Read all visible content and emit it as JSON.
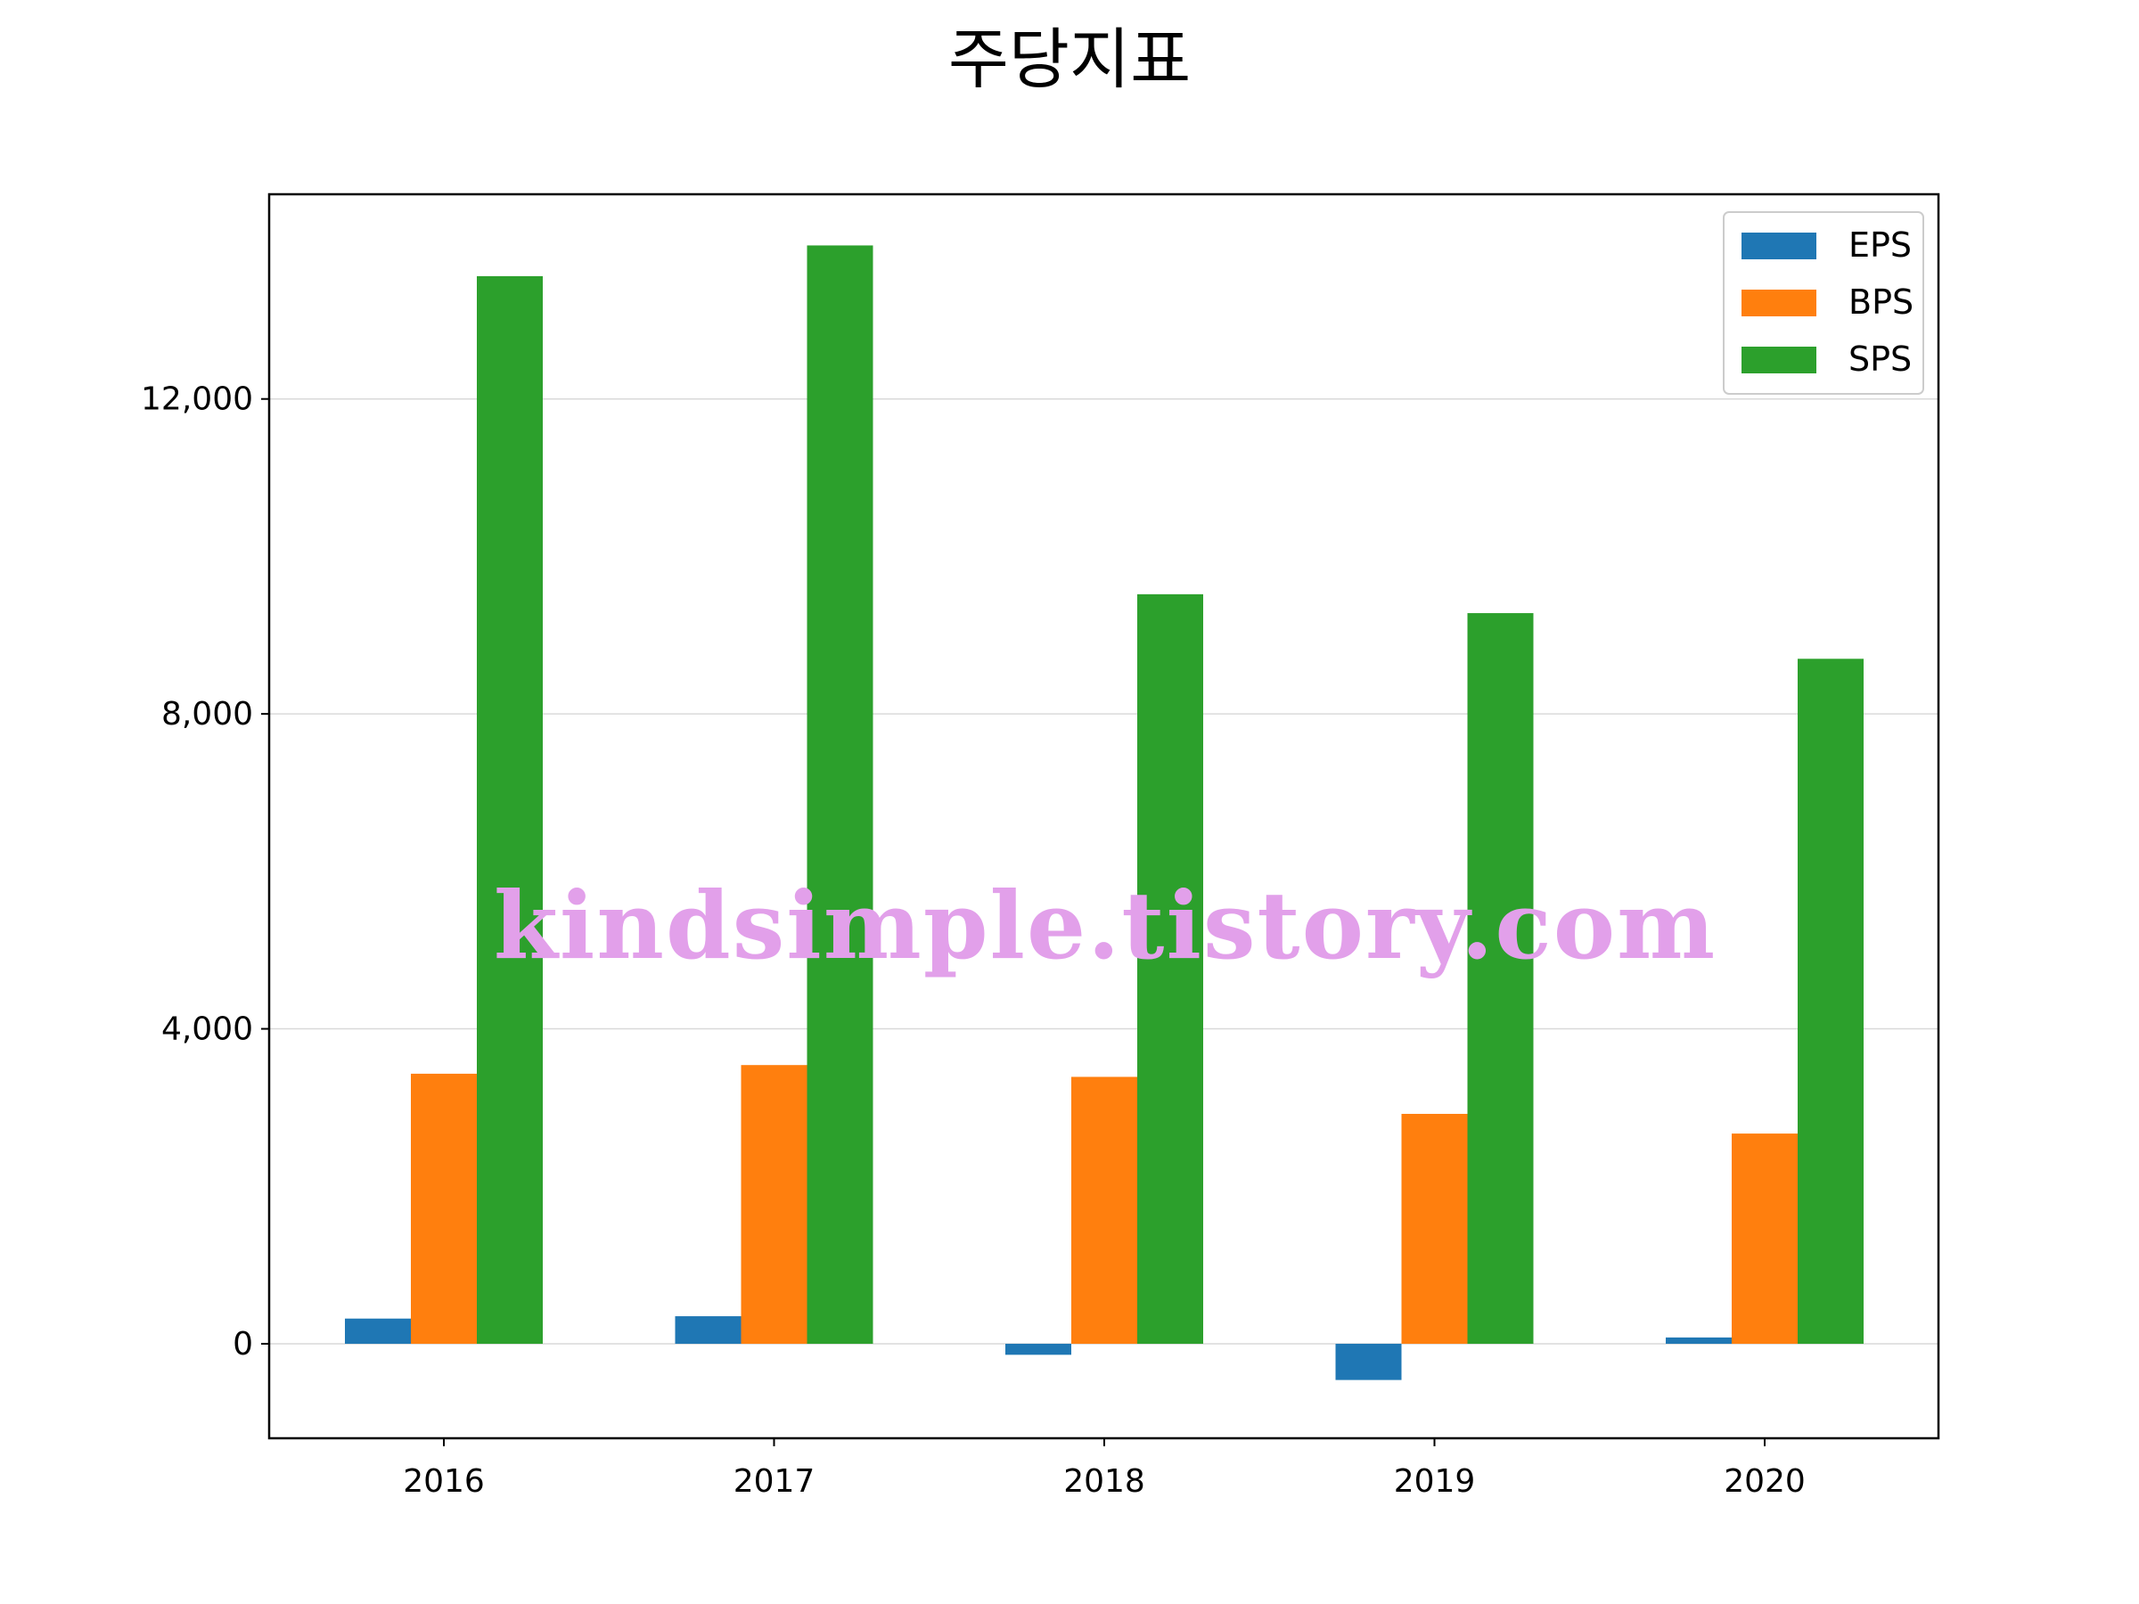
{
  "chart_data": {
    "type": "bar",
    "title": "주당지표",
    "xlabel": "",
    "ylabel": "",
    "categories": [
      "2016",
      "2017",
      "2018",
      "2019",
      "2020"
    ],
    "series": [
      {
        "name": "EPS",
        "color": "#1f77b4",
        "values": [
          320,
          350,
          -140,
          -460,
          80
        ]
      },
      {
        "name": "BPS",
        "color": "#ff7f0e",
        "values": [
          3430,
          3540,
          3390,
          2920,
          2670
        ]
      },
      {
        "name": "SPS",
        "color": "#2ca02c",
        "values": [
          13560,
          13950,
          9520,
          9280,
          8700
        ]
      }
    ],
    "ylim": [
      -1200,
      14600
    ],
    "yticks": [
      0,
      4000,
      8000,
      12000
    ],
    "ytick_labels": [
      "0",
      "4,000",
      "8,000",
      "12,000"
    ],
    "grid": "y",
    "legend_position": "top-right",
    "watermark": "kindsimple.tistory.com"
  }
}
